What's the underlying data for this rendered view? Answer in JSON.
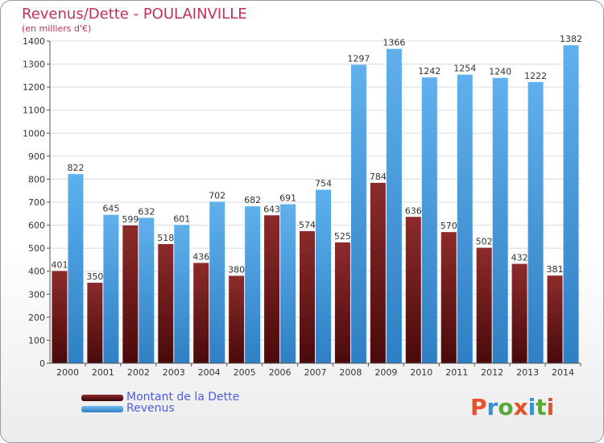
{
  "logo_text": "Proxiti",
  "colors": {
    "dette": "#6e1a1a",
    "revenus": "#3f95dc",
    "title": "#c0305a",
    "legend_text": "#4a5de0"
  },
  "chart_data": {
    "type": "bar",
    "title": "Revenus/Dette - POULAINVILLE",
    "subtitle": "(en milliers d'€)",
    "categories": [
      "2000",
      "2001",
      "2002",
      "2003",
      "2004",
      "2005",
      "2006",
      "2007",
      "2008",
      "2009",
      "2010",
      "2011",
      "2012",
      "2013",
      "2014"
    ],
    "series": [
      {
        "name": "Montant de la Dette",
        "values": [
          401,
          350,
          599,
          518,
          436,
          380,
          643,
          574,
          525,
          784,
          636,
          570,
          502,
          432,
          381
        ]
      },
      {
        "name": "Revenus",
        "values": [
          822,
          645,
          632,
          601,
          702,
          682,
          691,
          754,
          1297,
          1366,
          1242,
          1254,
          1240,
          1222,
          1382
        ]
      }
    ],
    "ylim": [
      0,
      1400
    ],
    "yticks": [
      0,
      100,
      200,
      300,
      400,
      500,
      600,
      700,
      800,
      900,
      1000,
      1100,
      1200,
      1300,
      1400
    ],
    "grid": true,
    "legend": "bottom-left"
  }
}
